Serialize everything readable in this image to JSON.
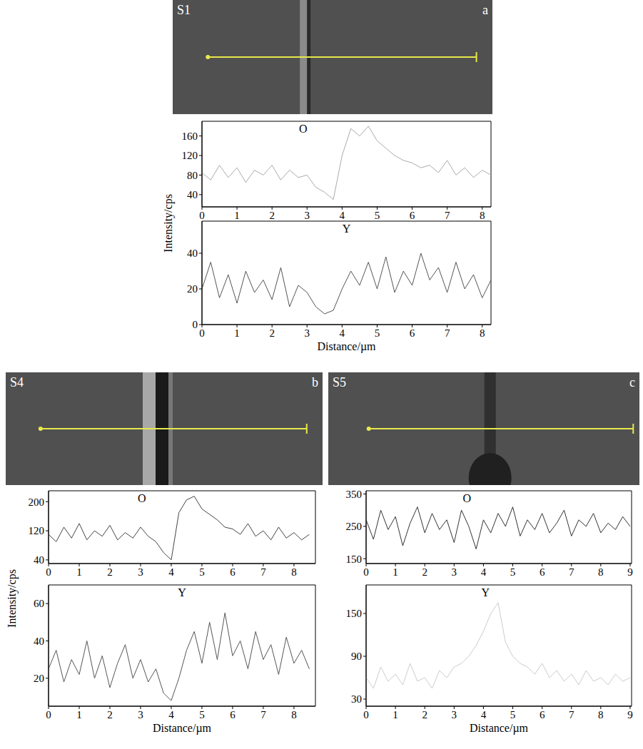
{
  "chart_data": [
    {
      "type": "line",
      "panel_label": "a",
      "image_label": "S1",
      "ylabel": "Intensity/cps",
      "x": [
        0,
        0.25,
        0.5,
        0.75,
        1,
        1.25,
        1.5,
        1.75,
        2,
        2.25,
        2.5,
        2.75,
        3,
        3.25,
        3.5,
        3.75,
        4,
        4.25,
        4.5,
        4.75,
        5,
        5.25,
        5.5,
        5.75,
        6,
        6.25,
        6.5,
        6.75,
        7,
        7.25,
        7.5,
        7.75,
        8,
        8.25
      ],
      "series": [
        {
          "name": "O",
          "color": "#aaaaaa",
          "values": [
            85,
            70,
            100,
            75,
            95,
            65,
            90,
            80,
            100,
            70,
            90,
            75,
            80,
            55,
            45,
            30,
            120,
            175,
            160,
            180,
            150,
            135,
            120,
            110,
            105,
            95,
            100,
            85,
            110,
            80,
            95,
            75,
            90,
            80
          ]
        }
      ],
      "xlim": [
        0,
        8.25
      ],
      "xticks": [
        0,
        1,
        2,
        3,
        4,
        5,
        6,
        7,
        8
      ],
      "ylim": [
        15,
        190
      ],
      "yticks": [
        40,
        80,
        120,
        160
      ]
    },
    {
      "type": "line",
      "xlabel": "Distance/µm",
      "x": [
        0,
        0.25,
        0.5,
        0.75,
        1,
        1.25,
        1.5,
        1.75,
        2,
        2.25,
        2.5,
        2.75,
        3,
        3.25,
        3.5,
        3.75,
        4,
        4.25,
        4.5,
        4.75,
        5,
        5.25,
        5.5,
        5.75,
        6,
        6.25,
        6.5,
        6.75,
        7,
        7.25,
        7.5,
        7.75,
        8,
        8.25
      ],
      "series": [
        {
          "name": "Y",
          "color": "#555555",
          "values": [
            20,
            35,
            15,
            28,
            12,
            30,
            18,
            25,
            14,
            32,
            10,
            22,
            18,
            10,
            6,
            8,
            20,
            30,
            22,
            35,
            20,
            38,
            18,
            30,
            22,
            40,
            25,
            32,
            18,
            35,
            20,
            28,
            15,
            25
          ]
        }
      ],
      "xlim": [
        0,
        8.25
      ],
      "xticks": [
        0,
        1,
        2,
        3,
        4,
        5,
        6,
        7,
        8
      ],
      "ylim": [
        0,
        58
      ],
      "yticks": [
        0,
        20,
        40
      ]
    },
    {
      "type": "line",
      "panel_label": "b",
      "image_label": "S4",
      "ylabel": "Intensity/cps",
      "x": [
        0,
        0.25,
        0.5,
        0.75,
        1,
        1.25,
        1.5,
        1.75,
        2,
        2.25,
        2.5,
        2.75,
        3,
        3.25,
        3.5,
        3.75,
        4,
        4.25,
        4.5,
        4.75,
        5,
        5.25,
        5.5,
        5.75,
        6,
        6.25,
        6.5,
        6.75,
        7,
        7.25,
        7.5,
        7.75,
        8,
        8.25,
        8.5
      ],
      "series": [
        {
          "name": "O",
          "color": "#444444",
          "values": [
            110,
            90,
            130,
            100,
            140,
            95,
            120,
            105,
            135,
            95,
            115,
            100,
            130,
            105,
            90,
            60,
            40,
            170,
            205,
            215,
            180,
            165,
            150,
            130,
            125,
            110,
            140,
            105,
            120,
            95,
            130,
            100,
            115,
            95,
            110
          ]
        }
      ],
      "xlim": [
        0,
        8.7
      ],
      "xticks": [
        0,
        1,
        2,
        3,
        4,
        5,
        6,
        7,
        8
      ],
      "ylim": [
        30,
        230
      ],
      "yticks": [
        40,
        120,
        200
      ]
    },
    {
      "type": "line",
      "xlabel": "Distance/µm",
      "x": [
        0,
        0.25,
        0.5,
        0.75,
        1,
        1.25,
        1.5,
        1.75,
        2,
        2.25,
        2.5,
        2.75,
        3,
        3.25,
        3.5,
        3.75,
        4,
        4.25,
        4.5,
        4.75,
        5,
        5.25,
        5.5,
        5.75,
        6,
        6.25,
        6.5,
        6.75,
        7,
        7.25,
        7.5,
        7.75,
        8,
        8.25,
        8.5
      ],
      "series": [
        {
          "name": "Y",
          "color": "#555555",
          "values": [
            25,
            35,
            18,
            30,
            22,
            40,
            20,
            32,
            15,
            28,
            38,
            20,
            30,
            18,
            25,
            12,
            8,
            20,
            35,
            45,
            28,
            50,
            30,
            55,
            32,
            40,
            25,
            45,
            30,
            38,
            22,
            42,
            28,
            35,
            25
          ]
        }
      ],
      "xlim": [
        0,
        8.7
      ],
      "xticks": [
        0,
        1,
        2,
        3,
        4,
        5,
        6,
        7,
        8
      ],
      "ylim": [
        5,
        70
      ],
      "yticks": [
        20,
        40,
        60
      ]
    },
    {
      "type": "line",
      "panel_label": "c",
      "image_label": "S5",
      "x": [
        0,
        0.25,
        0.5,
        0.75,
        1,
        1.25,
        1.5,
        1.75,
        2,
        2.25,
        2.5,
        2.75,
        3,
        3.25,
        3.5,
        3.75,
        4,
        4.25,
        4.5,
        4.75,
        5,
        5.25,
        5.5,
        5.75,
        6,
        6.25,
        6.5,
        6.75,
        7,
        7.25,
        7.5,
        7.75,
        8,
        8.25,
        8.5,
        8.75,
        9
      ],
      "series": [
        {
          "name": "O",
          "color": "#333333",
          "values": [
            270,
            210,
            300,
            240,
            280,
            190,
            260,
            310,
            230,
            290,
            240,
            270,
            200,
            300,
            250,
            180,
            270,
            230,
            290,
            250,
            310,
            220,
            270,
            240,
            290,
            230,
            260,
            300,
            220,
            270,
            250,
            290,
            230,
            260,
            240,
            280,
            250
          ]
        }
      ],
      "xlim": [
        0,
        9.05
      ],
      "xticks": [
        0,
        1,
        2,
        3,
        4,
        5,
        6,
        7,
        8,
        9
      ],
      "ylim": [
        135,
        360
      ],
      "yticks": [
        150,
        250,
        350
      ]
    },
    {
      "type": "line",
      "xlabel": "Distance/µm",
      "x": [
        0,
        0.25,
        0.5,
        0.75,
        1,
        1.25,
        1.5,
        1.75,
        2,
        2.25,
        2.5,
        2.75,
        3,
        3.25,
        3.5,
        3.75,
        4,
        4.25,
        4.5,
        4.75,
        5,
        5.25,
        5.5,
        5.75,
        6,
        6.25,
        6.5,
        6.75,
        7,
        7.25,
        7.5,
        7.75,
        8,
        8.25,
        8.5,
        8.75,
        9
      ],
      "series": [
        {
          "name": "Y",
          "color": "#cccccc",
          "values": [
            60,
            45,
            75,
            55,
            65,
            50,
            80,
            55,
            60,
            45,
            70,
            60,
            75,
            80,
            90,
            105,
            125,
            150,
            165,
            110,
            90,
            80,
            75,
            65,
            80,
            60,
            70,
            55,
            65,
            50,
            70,
            55,
            60,
            50,
            65,
            55,
            60
          ]
        }
      ],
      "xlim": [
        0,
        9.05
      ],
      "xticks": [
        0,
        1,
        2,
        3,
        4,
        5,
        6,
        7,
        8,
        9
      ],
      "ylim": [
        20,
        190
      ],
      "yticks": [
        30,
        90,
        150
      ]
    }
  ]
}
